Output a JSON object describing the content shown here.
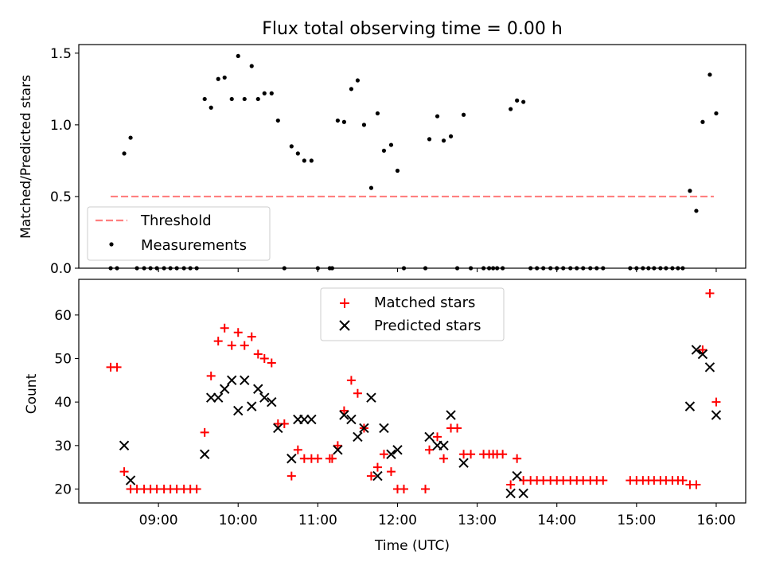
{
  "chart_data": [
    {
      "type": "scatter",
      "title": "Flux total observing time = 0.00 h",
      "xlabel": "",
      "ylabel": "Matched/Predicted stars",
      "xlim": [
        8.0,
        16.37
      ],
      "ylim": [
        0,
        1.56
      ],
      "x_ticks": [
        9,
        10,
        11,
        12,
        13,
        14,
        15,
        16
      ],
      "y_ticks": [
        0.0,
        0.5,
        1.0,
        1.5
      ],
      "y_tick_labels": [
        "0.0",
        "0.5",
        "1.0",
        "1.5"
      ],
      "legend_position": "lower-left",
      "series": [
        {
          "name": "Threshold",
          "style": "dashed-line",
          "color": "#ff7f7f",
          "x": [
            8.4,
            15.97
          ],
          "y": [
            0.5,
            0.5
          ]
        },
        {
          "name": "Measurements",
          "style": "dot",
          "color": "#000000",
          "x": [
            8.4,
            8.48,
            8.57,
            8.65,
            8.73,
            8.82,
            8.9,
            8.98,
            9.07,
            9.15,
            9.23,
            9.32,
            9.4,
            9.48,
            9.58,
            9.66,
            9.75,
            9.83,
            9.92,
            10.0,
            10.08,
            10.17,
            10.25,
            10.33,
            10.42,
            10.5,
            10.58,
            10.67,
            10.75,
            10.83,
            10.92,
            11.0,
            11.15,
            11.18,
            11.25,
            11.33,
            11.42,
            11.5,
            11.58,
            11.67,
            11.75,
            11.83,
            11.92,
            12.0,
            12.08,
            12.35,
            12.4,
            12.5,
            12.58,
            12.67,
            12.75,
            12.83,
            12.92,
            13.08,
            13.15,
            13.2,
            13.25,
            13.32,
            13.42,
            13.5,
            13.58,
            13.67,
            13.75,
            13.83,
            13.92,
            14.0,
            14.08,
            14.17,
            14.25,
            14.33,
            14.42,
            14.5,
            14.58,
            14.92,
            15.0,
            15.08,
            15.15,
            15.22,
            15.3,
            15.37,
            15.45,
            15.52,
            15.58,
            15.67,
            15.75,
            15.83,
            15.92,
            16.0
          ],
          "y": [
            0,
            0,
            0.8,
            0.91,
            0,
            0,
            0,
            0,
            0,
            0,
            0,
            0,
            0,
            0,
            1.18,
            1.12,
            1.32,
            1.33,
            1.18,
            1.48,
            1.18,
            1.41,
            1.18,
            1.22,
            1.22,
            1.03,
            0,
            0.85,
            0.8,
            0.75,
            0.75,
            0,
            0,
            0,
            1.03,
            1.02,
            1.25,
            1.31,
            1.0,
            0.56,
            1.08,
            0.82,
            0.86,
            0.68,
            0,
            0,
            0.9,
            1.06,
            0.89,
            0.92,
            0,
            1.07,
            0,
            0,
            0,
            0,
            0,
            0,
            1.11,
            1.17,
            1.16,
            0,
            0,
            0,
            0,
            0,
            0,
            0,
            0,
            0,
            0,
            0,
            0,
            0,
            0,
            0,
            0,
            0,
            0,
            0,
            0,
            0,
            0,
            0.54,
            0.4,
            1.02,
            1.35,
            1.08
          ]
        }
      ]
    },
    {
      "type": "scatter",
      "title": "",
      "xlabel": "Time (UTC)",
      "ylabel": "Count",
      "xlim": [
        8.0,
        16.37
      ],
      "ylim": [
        16.8,
        68.2
      ],
      "x_ticks": [
        9,
        10,
        11,
        12,
        13,
        14,
        15,
        16
      ],
      "x_tick_labels": [
        "09:00",
        "10:00",
        "11:00",
        "12:00",
        "13:00",
        "14:00",
        "15:00",
        "16:00"
      ],
      "y_ticks": [
        20,
        30,
        40,
        50,
        60
      ],
      "y_tick_labels": [
        "20",
        "30",
        "40",
        "50",
        "60"
      ],
      "legend_position": "upper-center",
      "series": [
        {
          "name": "Matched stars",
          "style": "plus",
          "color": "#ff0000",
          "x": [
            8.4,
            8.48,
            8.57,
            8.65,
            8.73,
            8.82,
            8.9,
            8.98,
            9.07,
            9.15,
            9.23,
            9.32,
            9.4,
            9.48,
            9.58,
            9.66,
            9.75,
            9.83,
            9.92,
            10.0,
            10.08,
            10.17,
            10.25,
            10.33,
            10.42,
            10.5,
            10.58,
            10.67,
            10.75,
            10.83,
            10.92,
            11.0,
            11.15,
            11.18,
            11.25,
            11.33,
            11.42,
            11.5,
            11.58,
            11.67,
            11.75,
            11.83,
            11.92,
            12.0,
            12.08,
            12.35,
            12.4,
            12.5,
            12.58,
            12.67,
            12.75,
            12.83,
            12.92,
            13.08,
            13.15,
            13.2,
            13.25,
            13.32,
            13.42,
            13.5,
            13.58,
            13.67,
            13.75,
            13.83,
            13.92,
            14.0,
            14.08,
            14.17,
            14.25,
            14.33,
            14.42,
            14.5,
            14.58,
            14.92,
            15.0,
            15.08,
            15.15,
            15.22,
            15.3,
            15.37,
            15.45,
            15.52,
            15.58,
            15.67,
            15.75,
            15.83,
            15.92,
            16.0
          ],
          "y": [
            48,
            48,
            24,
            20,
            20,
            20,
            20,
            20,
            20,
            20,
            20,
            20,
            20,
            20,
            33,
            46,
            54,
            57,
            53,
            56,
            53,
            55,
            51,
            50,
            49,
            35,
            35,
            23,
            29,
            27,
            27,
            27,
            27,
            27,
            30,
            38,
            45,
            42,
            34,
            23,
            25,
            28,
            24,
            20,
            20,
            20,
            29,
            32,
            27,
            34,
            34,
            28,
            28,
            28,
            28,
            28,
            28,
            28,
            21,
            27,
            22,
            22,
            22,
            22,
            22,
            22,
            22,
            22,
            22,
            22,
            22,
            22,
            22,
            22,
            22,
            22,
            22,
            22,
            22,
            22,
            22,
            22,
            22,
            21,
            21,
            52,
            65,
            40
          ]
        },
        {
          "name": "Predicted stars",
          "style": "x",
          "color": "#000000",
          "x": [
            8.57,
            8.65,
            9.58,
            9.66,
            9.75,
            9.83,
            9.92,
            10.0,
            10.08,
            10.17,
            10.25,
            10.33,
            10.42,
            10.5,
            10.67,
            10.75,
            10.83,
            10.92,
            11.25,
            11.33,
            11.42,
            11.5,
            11.58,
            11.67,
            11.75,
            11.83,
            11.92,
            12.0,
            12.4,
            12.5,
            12.58,
            12.67,
            12.83,
            13.42,
            13.5,
            13.58,
            15.67,
            15.75,
            15.83,
            15.92,
            16.0
          ],
          "y": [
            30,
            22,
            28,
            41,
            41,
            43,
            45,
            38,
            45,
            39,
            43,
            41,
            40,
            34,
            27,
            36,
            36,
            36,
            29,
            37,
            36,
            32,
            34,
            41,
            23,
            34,
            28,
            29,
            32,
            30,
            30,
            37,
            26,
            19,
            23,
            19,
            39,
            52,
            51,
            48,
            37
          ]
        }
      ]
    }
  ]
}
